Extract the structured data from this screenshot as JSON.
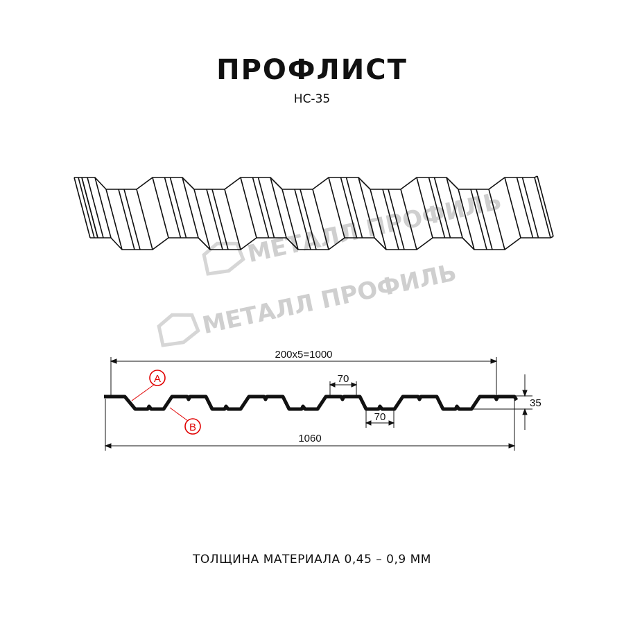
{
  "header": {
    "title": "ПРОФЛИСТ",
    "subtitle": "НС-35"
  },
  "watermark": {
    "text": "МЕТАЛЛ ПРОФИЛЬ",
    "color": "#cfcfcf"
  },
  "profile": {
    "dimensions": {
      "pitch_total": "200x5=1000",
      "overall_width": "1060",
      "top_flat": "70",
      "bottom_flat": "70",
      "height": "35"
    },
    "markers": [
      {
        "label": "A",
        "color": "#e00000"
      },
      {
        "label": "B",
        "color": "#e00000"
      }
    ]
  },
  "footer": {
    "thickness": "ТОЛЩИНА МАТЕРИАЛА 0,45 – 0,9 ММ"
  }
}
